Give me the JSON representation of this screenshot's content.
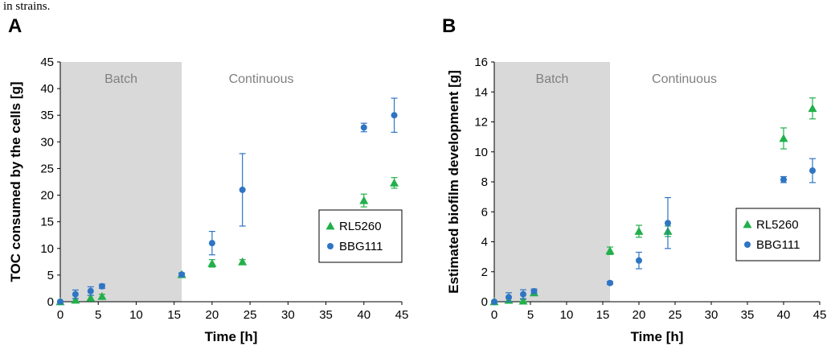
{
  "header_fragment": "in strains.",
  "colors": {
    "RL5260": "#22b04b",
    "BBG111": "#2e75c4",
    "batch_shade": "#d9d9d9",
    "region_text": "#808080"
  },
  "chart_data": [
    {
      "panel": "A",
      "type": "scatter",
      "xlabel": "Time [h]",
      "ylabel": "TOC consumed by the cells [g]",
      "xlim": [
        0,
        45
      ],
      "ylim": [
        0,
        45
      ],
      "xticks": [
        0,
        5,
        10,
        15,
        20,
        25,
        30,
        35,
        40,
        45
      ],
      "yticks": [
        0,
        5,
        10,
        15,
        20,
        25,
        30,
        35,
        40,
        45
      ],
      "regions": [
        {
          "label": "Batch",
          "x_range": [
            0,
            16
          ],
          "shaded": true
        },
        {
          "label": "Continuous",
          "x_range": [
            16,
            45
          ],
          "shaded": false
        }
      ],
      "legend_position": "right",
      "series": [
        {
          "name": "RL5260",
          "marker": "triangle",
          "points": [
            {
              "x": 0,
              "y": 0,
              "err": 0
            },
            {
              "x": 2,
              "y": 0.3,
              "err": 0.3
            },
            {
              "x": 4,
              "y": 0.7,
              "err": 0.5
            },
            {
              "x": 5.5,
              "y": 1.0,
              "err": 0.4
            },
            {
              "x": 16,
              "y": 5.1,
              "err": 0.3
            },
            {
              "x": 20,
              "y": 7.2,
              "err": 0.7
            },
            {
              "x": 24,
              "y": 7.5,
              "err": 0.4
            },
            {
              "x": 40,
              "y": 19.0,
              "err": 1.2
            },
            {
              "x": 44,
              "y": 22.3,
              "err": 1.0
            }
          ]
        },
        {
          "name": "BBG111",
          "marker": "circle",
          "points": [
            {
              "x": 0,
              "y": 0,
              "err": 0
            },
            {
              "x": 2,
              "y": 1.4,
              "err": 0.8
            },
            {
              "x": 4,
              "y": 2.0,
              "err": 0.8
            },
            {
              "x": 5.5,
              "y": 2.9,
              "err": 0.4
            },
            {
              "x": 16,
              "y": 5.1,
              "err": 0.3
            },
            {
              "x": 20,
              "y": 11.0,
              "err": 2.2
            },
            {
              "x": 24,
              "y": 21.0,
              "err": 6.8
            },
            {
              "x": 40,
              "y": 32.7,
              "err": 0.8
            },
            {
              "x": 44,
              "y": 35.0,
              "err": 3.2
            }
          ]
        }
      ]
    },
    {
      "panel": "B",
      "type": "scatter",
      "xlabel": "Time [h]",
      "ylabel": "Estimated biofilm development [g]",
      "xlim": [
        0,
        45
      ],
      "ylim": [
        0,
        16
      ],
      "xticks": [
        0,
        5,
        10,
        15,
        20,
        25,
        30,
        35,
        40,
        45
      ],
      "yticks": [
        0,
        2,
        4,
        6,
        8,
        10,
        12,
        14,
        16
      ],
      "regions": [
        {
          "label": "Batch",
          "x_range": [
            0,
            16
          ],
          "shaded": true
        },
        {
          "label": "Continuous",
          "x_range": [
            16,
            45
          ],
          "shaded": false
        }
      ],
      "legend_position": "right",
      "series": [
        {
          "name": "RL5260",
          "marker": "triangle",
          "points": [
            {
              "x": 0,
              "y": 0,
              "err": 0
            },
            {
              "x": 2,
              "y": 0.1,
              "err": 0.15
            },
            {
              "x": 4,
              "y": 0.05,
              "err": 0.1
            },
            {
              "x": 5.5,
              "y": 0.6,
              "err": 0.15
            },
            {
              "x": 16,
              "y": 3.4,
              "err": 0.25
            },
            {
              "x": 20,
              "y": 4.7,
              "err": 0.4
            },
            {
              "x": 24,
              "y": 4.7,
              "err": 0.35
            },
            {
              "x": 40,
              "y": 10.9,
              "err": 0.7
            },
            {
              "x": 44,
              "y": 12.9,
              "err": 0.7
            }
          ]
        },
        {
          "name": "BBG111",
          "marker": "circle",
          "points": [
            {
              "x": 0,
              "y": 0,
              "err": 0
            },
            {
              "x": 2,
              "y": 0.3,
              "err": 0.3
            },
            {
              "x": 4,
              "y": 0.5,
              "err": 0.3
            },
            {
              "x": 5.5,
              "y": 0.7,
              "err": 0.15
            },
            {
              "x": 16,
              "y": 1.25,
              "err": 0.1
            },
            {
              "x": 20,
              "y": 2.75,
              "err": 0.55
            },
            {
              "x": 24,
              "y": 5.25,
              "err": 1.7
            },
            {
              "x": 40,
              "y": 8.15,
              "err": 0.2
            },
            {
              "x": 44,
              "y": 8.75,
              "err": 0.8
            }
          ]
        }
      ]
    }
  ]
}
